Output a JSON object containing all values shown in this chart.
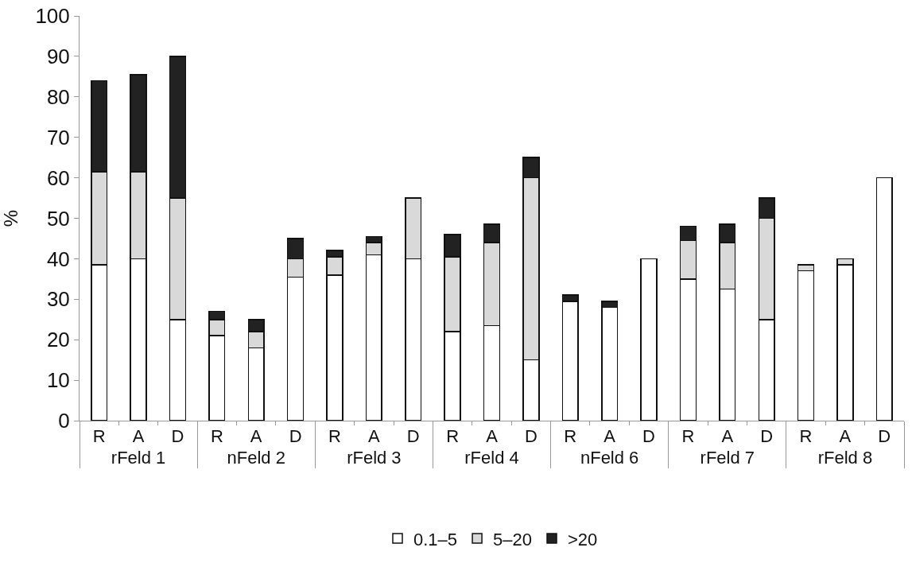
{
  "chart_data": {
    "type": "bar",
    "stacked": true,
    "ylabel": "%",
    "categories": [
      "R",
      "A",
      "D",
      "R",
      "A",
      "D",
      "R",
      "A",
      "D",
      "R",
      "A",
      "D",
      "R",
      "A",
      "D",
      "R",
      "A",
      "D",
      "R",
      "A",
      "D"
    ],
    "annotations": [
      "rFeld 1",
      "nFeld 2",
      "rFeld 3",
      "rFeld 4",
      "nFeld 6",
      "rFeld 7",
      "rFeld 8"
    ],
    "series": [
      {
        "name": "0.1–5",
        "color": "#ffffff",
        "values": [
          38.5,
          40,
          25,
          21,
          18,
          35.5,
          36,
          41,
          40,
          22,
          23.5,
          15,
          29.5,
          28,
          40,
          35,
          32.5,
          25,
          37,
          38.5,
          60
        ]
      },
      {
        "name": "5–20",
        "color": "#d9d9d9",
        "values": [
          23,
          21.5,
          30,
          4,
          4,
          4.5,
          4.5,
          3,
          15,
          18.5,
          20.5,
          45,
          0,
          0,
          0,
          9.5,
          11.5,
          25,
          1.5,
          1.5,
          0
        ]
      },
      {
        "name": ">20",
        "color": "#222222",
        "values": [
          22.5,
          24,
          35,
          2,
          3,
          5,
          1.5,
          1.5,
          0,
          5.5,
          4.5,
          5,
          1.5,
          1.5,
          0,
          3.5,
          4.5,
          5,
          0,
          0,
          0
        ]
      }
    ],
    "ylim": [
      0,
      100
    ],
    "yticks": [
      0,
      10,
      20,
      30,
      40,
      50,
      60,
      70,
      80,
      90,
      100
    ],
    "grid": false,
    "legend": "bottom"
  }
}
